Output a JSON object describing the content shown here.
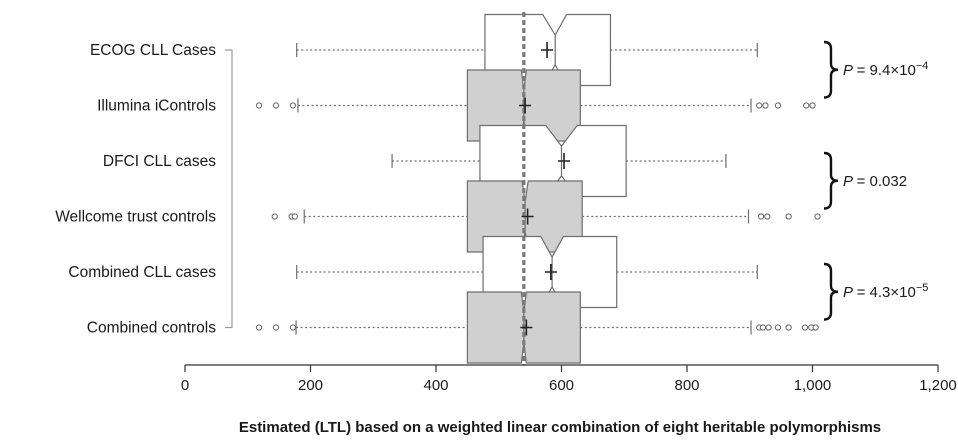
{
  "chart_data": {
    "type": "box",
    "xlabel": "Estimated (LTL) based on a weighted linear combination of eight heritable polymorphisms",
    "xlim": [
      0,
      1200
    ],
    "xticks": [
      0,
      200,
      400,
      600,
      800,
      1000,
      1200
    ],
    "xtick_labels": [
      "0",
      "200",
      "400",
      "600",
      "800",
      "1,000",
      "1,200"
    ],
    "reference_line": 540,
    "colors": {
      "case_fill": "#ffffff",
      "control_fill": "#d0d0d0",
      "stroke": "#6e6e6e",
      "reference_line": "#7a7a7a"
    },
    "series": [
      {
        "label": "ECOG CLL Cases",
        "group": "case",
        "whisker_low": 178,
        "q1": 478,
        "median": 590,
        "q3": 678,
        "whisker_high": 912,
        "notch_low": 570,
        "notch_high": 608,
        "mean": 577,
        "outliers": []
      },
      {
        "label": "Illumina iControls",
        "group": "control",
        "whisker_low": 180,
        "q1": 450,
        "median": 540,
        "q3": 630,
        "whisker_high": 902,
        "notch_low": 536,
        "notch_high": 544,
        "mean": 542,
        "outliers": [
          118,
          145,
          172,
          915,
          925,
          945,
          990,
          1000
        ]
      },
      {
        "label": "DFCI CLL cases",
        "group": "case",
        "whisker_low": 330,
        "q1": 470,
        "median": 600,
        "q3": 703,
        "whisker_high": 862,
        "notch_low": 575,
        "notch_high": 625,
        "mean": 604,
        "outliers": []
      },
      {
        "label": "Wellcome trust controls",
        "group": "control",
        "whisker_low": 190,
        "q1": 450,
        "median": 542,
        "q3": 633,
        "whisker_high": 898,
        "notch_low": 537,
        "notch_high": 547,
        "mean": 546,
        "outliers": [
          143,
          170,
          175,
          918,
          928,
          962,
          1008
        ]
      },
      {
        "label": "Combined CLL cases",
        "group": "case",
        "whisker_low": 178,
        "q1": 475,
        "median": 585,
        "q3": 688,
        "whisker_high": 912,
        "notch_low": 567,
        "notch_high": 603,
        "mean": 583,
        "outliers": []
      },
      {
        "label": "Combined controls",
        "group": "control",
        "whisker_low": 177,
        "q1": 450,
        "median": 540,
        "q3": 630,
        "whisker_high": 902,
        "notch_low": 536,
        "notch_high": 544,
        "mean": 544,
        "outliers": [
          118,
          145,
          172,
          915,
          921,
          930,
          945,
          962,
          988,
          998,
          1005
        ]
      }
    ],
    "comparisons": [
      {
        "pair": [
          "ECOG CLL Cases",
          "Illumina iControls"
        ],
        "prefix": "= 9.4×10",
        "exponent": "−4"
      },
      {
        "pair": [
          "DFCI CLL cases",
          "Wellcome trust controls"
        ],
        "prefix": "= 0.032",
        "exponent": ""
      },
      {
        "pair": [
          "Combined CLL cases",
          "Combined controls"
        ],
        "prefix": "= 4.3×10",
        "exponent": "−5"
      }
    ],
    "p_symbol": "P"
  }
}
